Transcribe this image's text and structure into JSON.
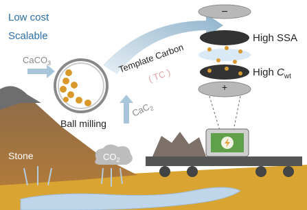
{
  "header": {
    "lines": [
      "Low cost",
      "Scalable"
    ]
  },
  "labels": {
    "caco3": {
      "base": "CaCO",
      "sub": "3"
    },
    "ball_milling": "Ball milling",
    "template_carbon": "Template Carbon",
    "tc": "( TC )",
    "cac2": {
      "base": "CaC",
      "sub": "2"
    },
    "co2": {
      "base": "CO",
      "sub": "2"
    },
    "stone": "Stone"
  },
  "battery": {
    "minus": "−",
    "plus": "+",
    "high_ssa": "High SSA",
    "high_cwt": {
      "base": "High ",
      "italic": "C",
      "sub": "wt"
    }
  }
}
